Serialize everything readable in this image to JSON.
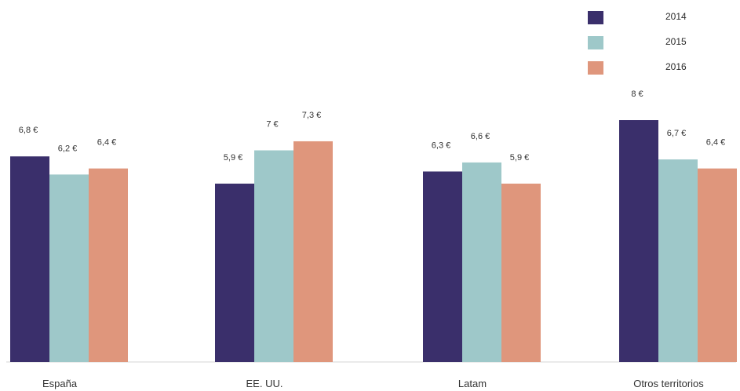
{
  "chart_data": {
    "type": "bar",
    "categories": [
      "España",
      "EE. UU.",
      "Latam",
      "Otros territorios"
    ],
    "series": [
      {
        "name": "2014",
        "color": "#3a2f6b",
        "values": [
          6.8,
          5.9,
          6.3,
          8
        ],
        "labels": [
          "6,8 €",
          "5,9 €",
          "6,3 €",
          "8 €"
        ]
      },
      {
        "name": "2015",
        "color": "#9ec8c9",
        "values": [
          6.2,
          7,
          6.6,
          6.7
        ],
        "labels": [
          "6,2 €",
          "7 €",
          "6,6 €",
          "6,7 €"
        ]
      },
      {
        "name": "2016",
        "color": "#df967c",
        "values": [
          6.4,
          7.3,
          5.9,
          6.4
        ],
        "labels": [
          "6,4 €",
          "7,3 €",
          "5,9 €",
          "6,4 €"
        ]
      }
    ],
    "title": "",
    "xlabel": "",
    "ylabel": "",
    "ylim": [
      0,
      8
    ],
    "grid": false,
    "legend_position": "top-right"
  }
}
